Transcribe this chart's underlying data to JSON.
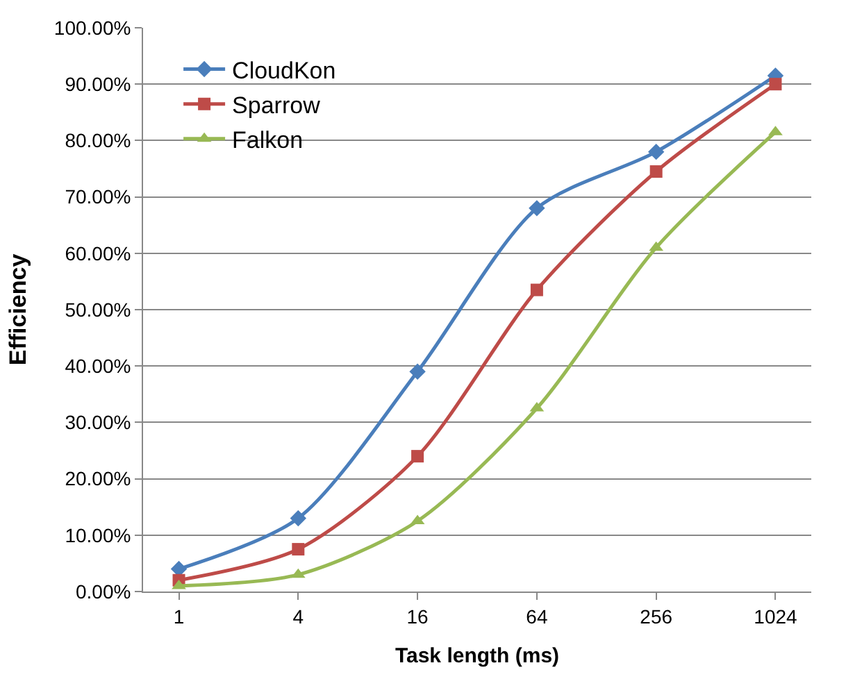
{
  "chart_data": {
    "type": "line",
    "xlabel": "Task length (ms)",
    "ylabel": "Efficiency",
    "categories": [
      "1",
      "4",
      "16",
      "64",
      "256",
      "1024"
    ],
    "series": [
      {
        "name": "CloudKon",
        "color": "#4a7ebb",
        "marker": "diamond",
        "values": [
          4,
          13,
          39,
          68,
          78,
          91.5
        ]
      },
      {
        "name": "Sparrow",
        "color": "#be4b48",
        "marker": "square",
        "values": [
          2,
          7.5,
          24,
          53.5,
          74.5,
          90
        ]
      },
      {
        "name": "Falkon",
        "color": "#98b954",
        "marker": "triangle",
        "values": [
          1,
          3,
          12.5,
          32.5,
          61,
          81.5
        ]
      }
    ],
    "ylim": [
      0,
      100
    ],
    "yticks": [
      {
        "value": 0,
        "label": "0.00%"
      },
      {
        "value": 10,
        "label": "10.00%"
      },
      {
        "value": 20,
        "label": "20.00%"
      },
      {
        "value": 30,
        "label": "30.00%"
      },
      {
        "value": 40,
        "label": "40.00%"
      },
      {
        "value": 50,
        "label": "50.00%"
      },
      {
        "value": 60,
        "label": "60.00%"
      },
      {
        "value": 70,
        "label": "70.00%"
      },
      {
        "value": 80,
        "label": "80.00%"
      },
      {
        "value": 90,
        "label": "90.00%"
      },
      {
        "value": 100,
        "label": "100.00%"
      }
    ],
    "grid": "y",
    "legend": "top left",
    "line_style": "solid"
  }
}
